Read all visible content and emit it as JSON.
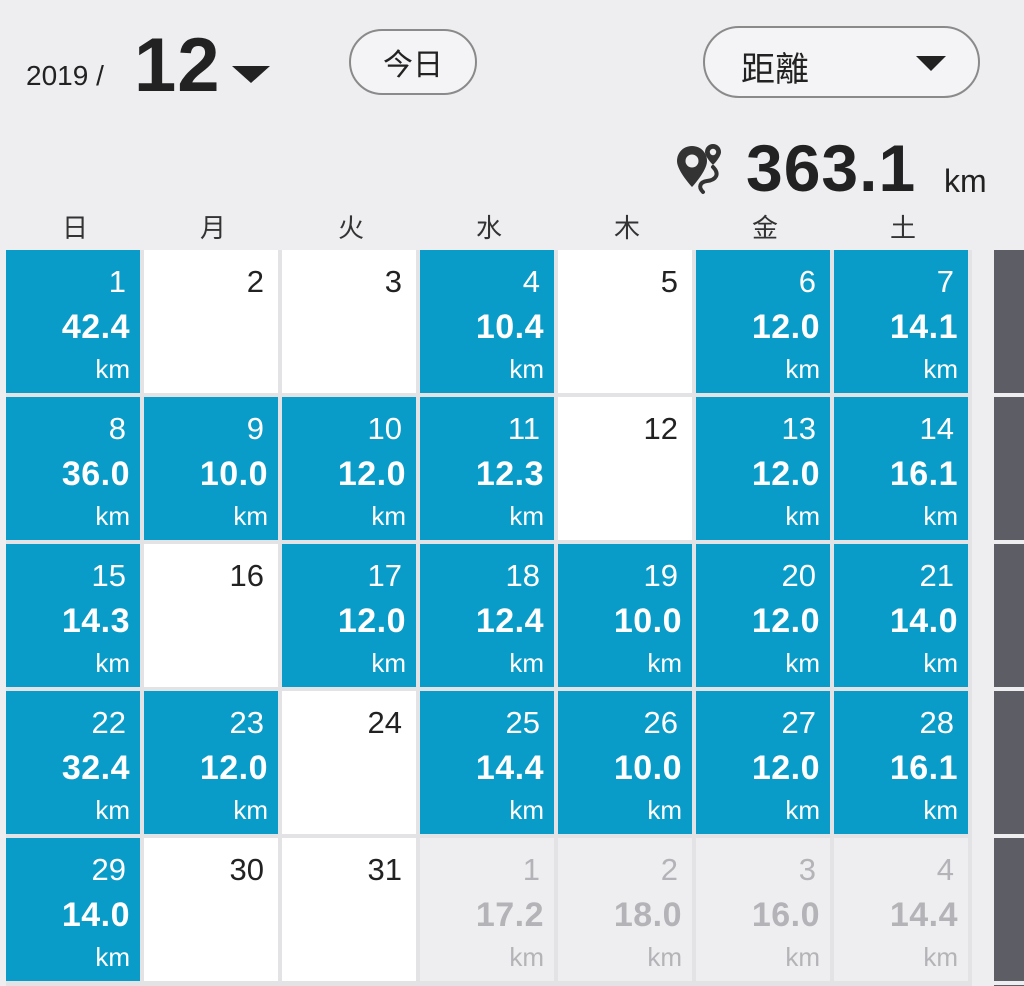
{
  "header": {
    "year": "2019 /",
    "month": "12",
    "today_label": "今日",
    "metric_label": "距離",
    "total_value": "363.1",
    "total_unit": "km"
  },
  "weekdays": [
    "日",
    "月",
    "火",
    "水",
    "木",
    "金",
    "土"
  ],
  "colors": {
    "active": "#0a9cc8",
    "empty": "#ffffff",
    "next_month": "#eeeef0",
    "scrollbar": "#5d5d66"
  },
  "icons": {
    "month_dropdown": "chevron-down-icon",
    "metric_dropdown": "chevron-down-icon",
    "total": "route-pin-icon"
  },
  "weeks": [
    [
      {
        "day": "1",
        "dist": "42.4",
        "unit": "km",
        "state": "active"
      },
      {
        "day": "2",
        "dist": "",
        "unit": "",
        "state": "empty"
      },
      {
        "day": "3",
        "dist": "",
        "unit": "",
        "state": "empty"
      },
      {
        "day": "4",
        "dist": "10.4",
        "unit": "km",
        "state": "active"
      },
      {
        "day": "5",
        "dist": "",
        "unit": "",
        "state": "empty"
      },
      {
        "day": "6",
        "dist": "12.0",
        "unit": "km",
        "state": "active"
      },
      {
        "day": "7",
        "dist": "14.1",
        "unit": "km",
        "state": "active"
      }
    ],
    [
      {
        "day": "8",
        "dist": "36.0",
        "unit": "km",
        "state": "active"
      },
      {
        "day": "9",
        "dist": "10.0",
        "unit": "km",
        "state": "active"
      },
      {
        "day": "10",
        "dist": "12.0",
        "unit": "km",
        "state": "active"
      },
      {
        "day": "11",
        "dist": "12.3",
        "unit": "km",
        "state": "active"
      },
      {
        "day": "12",
        "dist": "",
        "unit": "",
        "state": "empty"
      },
      {
        "day": "13",
        "dist": "12.0",
        "unit": "km",
        "state": "active"
      },
      {
        "day": "14",
        "dist": "16.1",
        "unit": "km",
        "state": "active"
      }
    ],
    [
      {
        "day": "15",
        "dist": "14.3",
        "unit": "km",
        "state": "active"
      },
      {
        "day": "16",
        "dist": "",
        "unit": "",
        "state": "empty"
      },
      {
        "day": "17",
        "dist": "12.0",
        "unit": "km",
        "state": "active"
      },
      {
        "day": "18",
        "dist": "12.4",
        "unit": "km",
        "state": "active"
      },
      {
        "day": "19",
        "dist": "10.0",
        "unit": "km",
        "state": "active"
      },
      {
        "day": "20",
        "dist": "12.0",
        "unit": "km",
        "state": "active"
      },
      {
        "day": "21",
        "dist": "14.0",
        "unit": "km",
        "state": "active"
      }
    ],
    [
      {
        "day": "22",
        "dist": "32.4",
        "unit": "km",
        "state": "active"
      },
      {
        "day": "23",
        "dist": "12.0",
        "unit": "km",
        "state": "active"
      },
      {
        "day": "24",
        "dist": "",
        "unit": "",
        "state": "empty"
      },
      {
        "day": "25",
        "dist": "14.4",
        "unit": "km",
        "state": "active"
      },
      {
        "day": "26",
        "dist": "10.0",
        "unit": "km",
        "state": "active"
      },
      {
        "day": "27",
        "dist": "12.0",
        "unit": "km",
        "state": "active"
      },
      {
        "day": "28",
        "dist": "16.1",
        "unit": "km",
        "state": "active"
      }
    ],
    [
      {
        "day": "29",
        "dist": "14.0",
        "unit": "km",
        "state": "active"
      },
      {
        "day": "30",
        "dist": "",
        "unit": "",
        "state": "empty"
      },
      {
        "day": "31",
        "dist": "",
        "unit": "",
        "state": "empty"
      },
      {
        "day": "1",
        "dist": "17.2",
        "unit": "km",
        "state": "next"
      },
      {
        "day": "2",
        "dist": "18.0",
        "unit": "km",
        "state": "next"
      },
      {
        "day": "3",
        "dist": "16.0",
        "unit": "km",
        "state": "next"
      },
      {
        "day": "4",
        "dist": "14.4",
        "unit": "km",
        "state": "next"
      }
    ]
  ]
}
